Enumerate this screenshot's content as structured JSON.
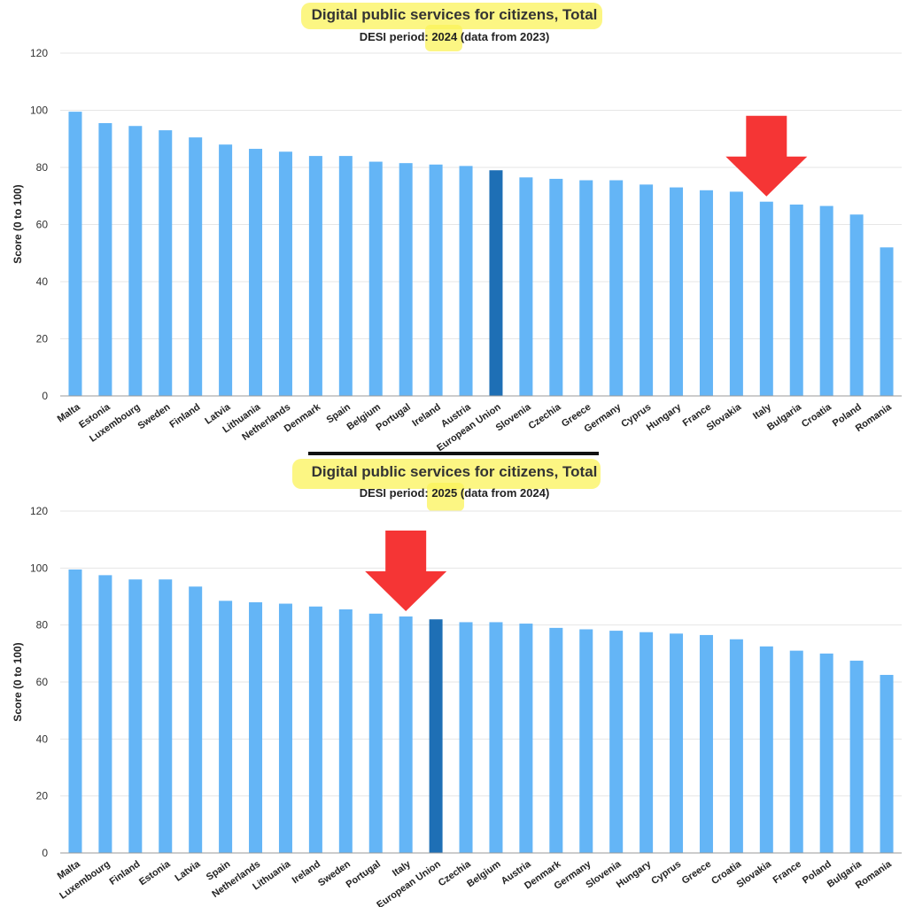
{
  "colors": {
    "bar": "#64b5f6",
    "highlight_bar": "#1e6fb5",
    "arrow": "#f53535",
    "marker_highlight": "#f9f251",
    "separator": "#111111"
  },
  "chart_data": [
    {
      "type": "bar",
      "title": "Digital public services for citizens, Total",
      "subtitle_prefix": "DESI period: ",
      "subtitle_year": "2024",
      "subtitle_suffix": " (data from 2023)",
      "ylabel": "Score (0 to 100)",
      "xlabel": "",
      "ylim": [
        0,
        120
      ],
      "yticks": [
        0,
        20,
        40,
        60,
        80,
        100,
        120
      ],
      "grid": true,
      "highlighted_category": "European Union",
      "arrow_at": "Italy",
      "categories": [
        "Malta",
        "Estonia",
        "Luxembourg",
        "Sweden",
        "Finland",
        "Latvia",
        "Lithuania",
        "Netherlands",
        "Denmark",
        "Spain",
        "Belgium",
        "Portugal",
        "Ireland",
        "Austria",
        "European Union",
        "Slovenia",
        "Czechia",
        "Greece",
        "Germany",
        "Cyprus",
        "Hungary",
        "France",
        "Slovakia",
        "Italy",
        "Bulgaria",
        "Croatia",
        "Poland",
        "Romania"
      ],
      "values": [
        99.5,
        95.5,
        94.5,
        93,
        90.5,
        88,
        86.5,
        85.5,
        84,
        84,
        82,
        81.5,
        81,
        80.5,
        79,
        76.5,
        76,
        75.5,
        75.5,
        74,
        73,
        72,
        71.5,
        68,
        67,
        66.5,
        63.5,
        52
      ]
    },
    {
      "type": "bar",
      "title": "Digital public services for citizens, Total",
      "subtitle_prefix": "DESI period: ",
      "subtitle_year": "2025",
      "subtitle_suffix": " (data from 2024)",
      "ylabel": "Score (0 to 100)",
      "xlabel": "",
      "ylim": [
        0,
        120
      ],
      "yticks": [
        0,
        20,
        40,
        60,
        80,
        100,
        120
      ],
      "grid": true,
      "highlighted_category": "European Union",
      "arrow_at": "Italy",
      "categories": [
        "Malta",
        "Luxembourg",
        "Finland",
        "Estonia",
        "Latvia",
        "Spain",
        "Netherlands",
        "Lithuania",
        "Ireland",
        "Sweden",
        "Portugal",
        "Italy",
        "European Union",
        "Czechia",
        "Belgium",
        "Austria",
        "Denmark",
        "Germany",
        "Slovenia",
        "Hungary",
        "Cyprus",
        "Greece",
        "Croatia",
        "Slovakia",
        "France",
        "Poland",
        "Bulgaria",
        "Romania"
      ],
      "values": [
        99.5,
        97.5,
        96,
        96,
        93.5,
        88.5,
        88,
        87.5,
        86.5,
        85.5,
        84,
        83,
        82,
        81,
        81,
        80.5,
        79,
        78.5,
        78,
        77.5,
        77,
        76.5,
        75,
        72.5,
        71,
        70,
        67.5,
        62.5
      ]
    }
  ]
}
